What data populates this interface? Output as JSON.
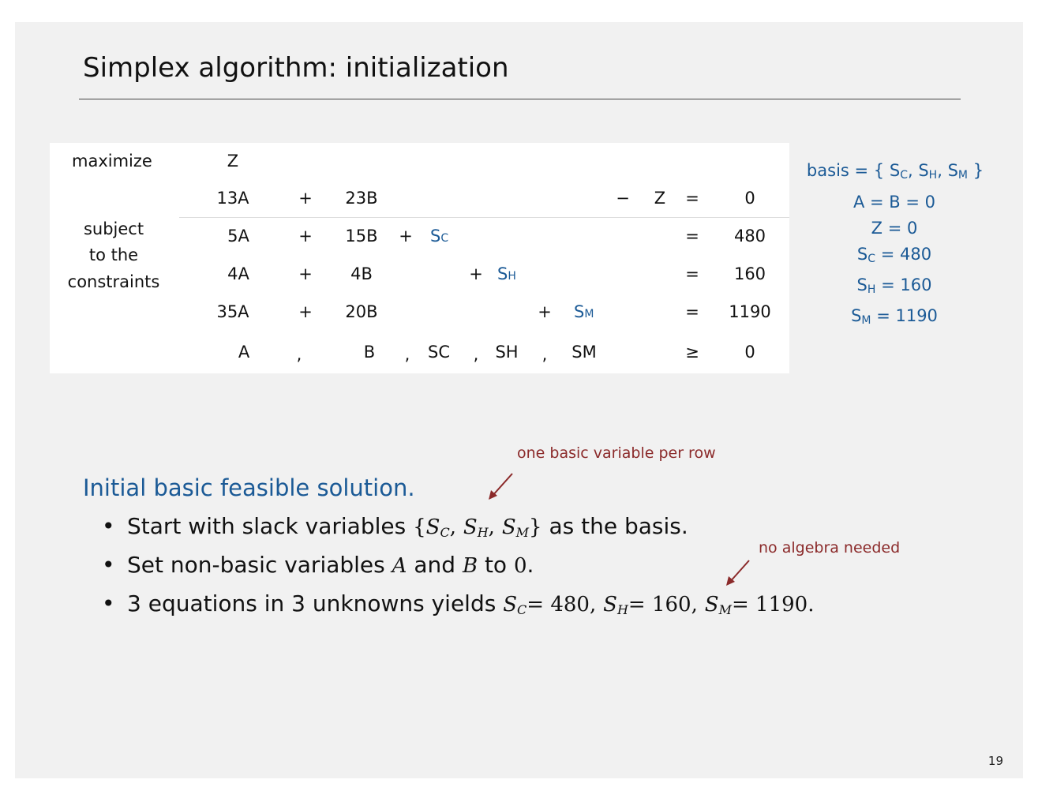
{
  "slide": {
    "title": "Simplex algorithm: initialization",
    "page_number": "19"
  },
  "lp": {
    "maximize_label": "maximize",
    "objective_var": "Z",
    "subject_lines": [
      "subject",
      "to the",
      "constraints"
    ],
    "objective_row": [
      "13A",
      "+",
      "23B",
      "−",
      "Z",
      "=",
      "0"
    ],
    "constraint_rows": [
      {
        "a": "5A",
        "op1": "+",
        "b": "15B",
        "op2": "+",
        "slack_base": "S",
        "slack_sub": "C",
        "eq": "=",
        "rhs": "480"
      },
      {
        "a": "4A",
        "op1": "+",
        "b": "4B",
        "op2": "+",
        "slack_base": "S",
        "slack_sub": "H",
        "eq": "=",
        "rhs": "160"
      },
      {
        "a": "35A",
        "op1": "+",
        "b": "20B",
        "op2": "+",
        "slack_base": "S",
        "slack_sub": "M",
        "eq": "=",
        "rhs": "1190"
      }
    ],
    "nonneg_row": {
      "vars": [
        "A",
        "B",
        "SC",
        "SH",
        "SM"
      ],
      "comma": ",",
      "relation": "≥",
      "rhs": "0"
    }
  },
  "side_panel": {
    "basis_prefix": "basis = {",
    "basis_vars": [
      {
        "base": "S",
        "sub": "C"
      },
      {
        "base": "S",
        "sub": "H"
      },
      {
        "base": "S",
        "sub": "M"
      }
    ],
    "basis_suffix": "}",
    "line_ab": "A = B = 0",
    "line_z": "Z = 0",
    "slack_values": [
      {
        "base": "S",
        "sub": "C",
        "value": "= 480"
      },
      {
        "base": "S",
        "sub": "H",
        "value": "= 160"
      },
      {
        "base": "S",
        "sub": "M",
        "value": "= 1190"
      }
    ]
  },
  "content": {
    "heading": "Initial basic feasible solution.",
    "bullet_symbol": "•",
    "bullets": {
      "b1_pre": "Start with slack variables",
      "b1_math_open": "{",
      "b1_math_close": "}",
      "b1_post": "as the basis.",
      "b2_pre": "Set non-basic variables",
      "b2_var_a": "A",
      "b2_mid": "and",
      "b2_var_b": "B",
      "b2_to": "to",
      "b2_zero": "0",
      "b2_end": ".",
      "b3_pre": "3 equations in 3 unknowns yields",
      "b3_vals": [
        "= 480,",
        "= 160,",
        "= 1190."
      ]
    },
    "math_vars": [
      {
        "base": "S",
        "sub": "C"
      },
      {
        "base": "S",
        "sub": "H"
      },
      {
        "base": "S",
        "sub": "M"
      }
    ]
  },
  "annotations": {
    "note1": "one basic variable per row",
    "note2": "no algebra needed"
  },
  "colors": {
    "slide_bg": "#f1f1f1",
    "accent_blue": "#1b5a96",
    "annotation_red": "#8b2a2a"
  }
}
